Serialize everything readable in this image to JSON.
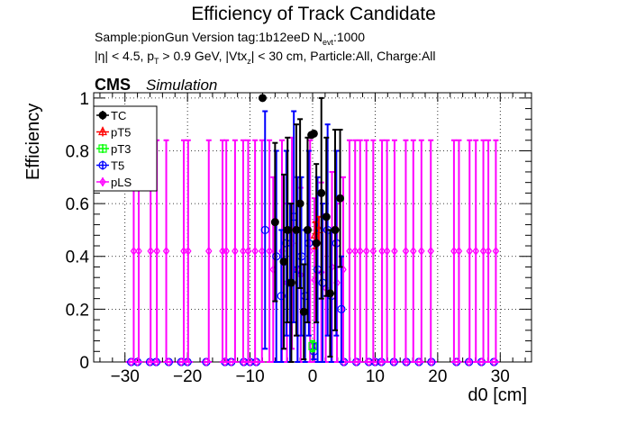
{
  "title": "Efficiency of Track Candidate",
  "info": {
    "sample": "Sample:pionGun   Version tag:1b12eeD  N",
    "n_sub": "evt",
    "n_val": ":1000",
    "cuts_a": "|η| < 4.5, p",
    "cuts_a_sub": "T",
    "cuts_b": " > 0.9 GeV, |Vtx",
    "cuts_b_sub": "z",
    "cuts_c": "| < 30 cm, Particle:All, Charge:All"
  },
  "cms_label": "CMS",
  "sim_label": "Simulation",
  "chart_data": {
    "type": "scatter",
    "xlabel": "d0 [cm]",
    "ylabel": "Efficiency",
    "xlim": [
      -35,
      35
    ],
    "ylim": [
      0,
      1.02
    ],
    "xticks": [
      -30,
      -20,
      -10,
      0,
      10,
      20,
      30
    ],
    "xtick_labels": [
      "−30",
      "−20",
      "−10",
      "0",
      "10",
      "20",
      "30"
    ],
    "yticks": [
      0,
      0.2,
      0.4,
      0.6,
      0.8,
      1
    ],
    "ytick_labels": [
      "0",
      "0.2",
      "0.4",
      "0.6",
      "0.8",
      "1"
    ],
    "grid": true,
    "legend_position": "top-left",
    "series": [
      {
        "name": "TC",
        "color": "#000000",
        "marker": "filled-circle",
        "x": [
          -8,
          -6,
          -4.6,
          -4,
          -3.4,
          -2.6,
          -2,
          -1.4,
          -0.8,
          -0.2,
          0.2,
          0.6,
          1.4,
          2.2,
          2.8,
          3.6,
          4.4
        ],
        "y": [
          1.0,
          0.53,
          0.38,
          0.5,
          0.3,
          0.5,
          0.6,
          0.19,
          0.5,
          0.86,
          0.865,
          0.45,
          0.64,
          0.55,
          0.26,
          0.5,
          0.62
        ],
        "yerr": [
          0.0,
          0.3,
          0.33,
          0.35,
          0.3,
          0.4,
          0.32,
          0.18,
          0.35,
          0.0,
          0.0,
          0.3,
          0.4,
          0.3,
          0.24,
          0.38,
          0.26
        ]
      },
      {
        "name": "pT5",
        "color": "#ff0000",
        "marker": "open-triangle",
        "x": [
          0.4,
          1.0
        ],
        "y": [
          0.48,
          0.5
        ],
        "yerr": [
          0.05,
          0.05
        ]
      },
      {
        "name": "pT3",
        "color": "#00ff00",
        "marker": "open-square",
        "x": [
          0.0
        ],
        "y": [
          0.06
        ],
        "yerr": [
          0.02
        ]
      },
      {
        "name": "T5",
        "color": "#0000ff",
        "marker": "open-circle",
        "x": [
          -7.6,
          -5.8,
          -5,
          -4.2,
          -3.6,
          -3,
          -2.4,
          -1.8,
          -1.2,
          -0.6,
          0.2,
          0.8,
          1.6,
          2.4,
          3,
          3.8,
          4.6
        ],
        "y": [
          0.5,
          0.4,
          0.25,
          0.45,
          0.3,
          0.55,
          0.35,
          0.4,
          0.25,
          0.45,
          0.04,
          0.35,
          0.3,
          0.5,
          0.25,
          0.45,
          0.2
        ],
        "yerr": [
          0.45,
          0.4,
          0.25,
          0.35,
          0.3,
          0.4,
          0.35,
          0.3,
          0.25,
          0.35,
          0.03,
          0.35,
          0.3,
          0.4,
          0.25,
          0.35,
          0.2
        ]
      },
      {
        "name": "pLS",
        "color": "#ff00ff",
        "marker": "open-diamond",
        "x": [
          -28.6,
          -27.8,
          -25.9,
          -24.9,
          -23.4,
          -20.6,
          -19.9,
          -16.6,
          -14.4,
          -13.8,
          -12.4,
          -11.1,
          -10.3,
          -9.2,
          -8.1,
          -6.9,
          -6.3,
          -4.9,
          -4.1,
          -3.3,
          -2.4,
          -1.9,
          -0.4,
          0.3,
          1.4,
          2.1,
          3.1,
          3.9,
          4.9,
          5.9,
          6.8,
          7.6,
          8.6,
          9.7,
          11.1,
          11.9,
          13.1,
          14.9,
          16.1,
          17.4,
          18.9,
          22.6,
          23.4,
          25.1,
          26.1,
          27.3,
          28.1,
          29.3
        ],
        "y": [
          0.42,
          0.42,
          0.42,
          0.42,
          0.42,
          0.42,
          0.42,
          0.42,
          0.42,
          0.42,
          0.42,
          0.42,
          0.42,
          0.42,
          0.42,
          0.42,
          0.35,
          0.42,
          0.3,
          0.45,
          0.35,
          0.33,
          0.42,
          0.31,
          0.34,
          0.28,
          0.36,
          0.3,
          0.35,
          0.42,
          0.42,
          0.42,
          0.42,
          0.42,
          0.42,
          0.42,
          0.42,
          0.42,
          0.42,
          0.42,
          0.42,
          0.42,
          0.42,
          0.42,
          0.42,
          0.42,
          0.42,
          0.42
        ],
        "yerr": [
          0.42,
          0.42,
          0.42,
          0.42,
          0.42,
          0.42,
          0.42,
          0.42,
          0.42,
          0.42,
          0.42,
          0.42,
          0.42,
          0.42,
          0.42,
          0.42,
          0.35,
          0.42,
          0.3,
          0.4,
          0.35,
          0.33,
          0.42,
          0.31,
          0.34,
          0.28,
          0.36,
          0.3,
          0.35,
          0.42,
          0.42,
          0.42,
          0.42,
          0.42,
          0.42,
          0.42,
          0.42,
          0.42,
          0.42,
          0.42,
          0.42,
          0.42,
          0.42,
          0.42,
          0.42,
          0.42,
          0.42,
          0.42
        ]
      }
    ],
    "zero_points_x": [
      -29,
      -28,
      -26,
      -25,
      -23,
      -21,
      -20,
      -17,
      -14,
      -13,
      -11,
      -10,
      -9,
      5,
      7,
      9,
      10,
      11,
      13,
      15,
      17,
      19,
      23,
      25,
      27,
      29
    ]
  }
}
